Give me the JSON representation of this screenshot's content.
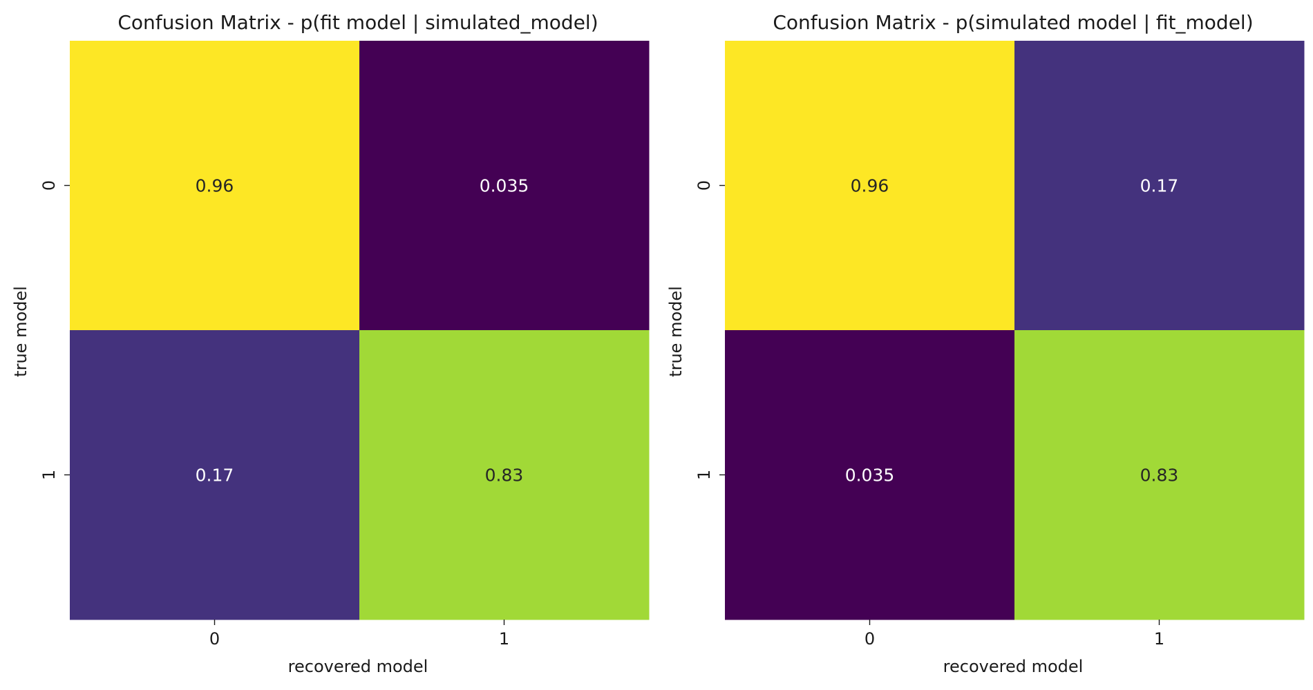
{
  "chart_data": [
    {
      "type": "heatmap",
      "title": "Confusion Matrix - p(fit model | simulated_model)",
      "xlabel": "recovered model",
      "ylabel": "true model",
      "x_categories": [
        "0",
        "1"
      ],
      "y_categories": [
        "0",
        "1"
      ],
      "values": [
        [
          0.96,
          0.035
        ],
        [
          0.17,
          0.83
        ]
      ],
      "annotations": [
        [
          "0.96",
          "0.035"
        ],
        [
          "0.17",
          "0.83"
        ]
      ],
      "colormap": "viridis",
      "colorbar": false,
      "grid": false
    },
    {
      "type": "heatmap",
      "title": "Confusion Matrix - p(simulated model | fit_model)",
      "xlabel": "recovered model",
      "ylabel": "true model",
      "x_categories": [
        "0",
        "1"
      ],
      "y_categories": [
        "0",
        "1"
      ],
      "values": [
        [
          0.96,
          0.17
        ],
        [
          0.035,
          0.83
        ]
      ],
      "annotations": [
        [
          "0.96",
          "0.17"
        ],
        [
          "0.035",
          "0.83"
        ]
      ],
      "colormap": "viridis",
      "colorbar": false,
      "grid": false
    }
  ]
}
